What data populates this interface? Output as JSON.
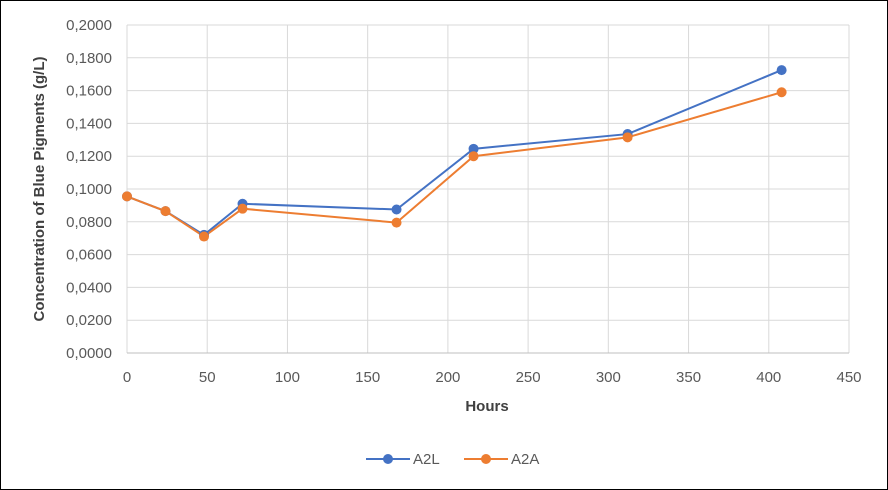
{
  "chart_data": {
    "type": "scatter",
    "title": "",
    "xlabel": "Hours",
    "ylabel": "Concentration of Blue Pigments (g/L)",
    "xlim": [
      0,
      450
    ],
    "ylim": [
      0,
      0.2
    ],
    "x_ticks": [
      0,
      50,
      100,
      150,
      200,
      250,
      300,
      350,
      400,
      450
    ],
    "x_tick_labels": [
      "0",
      "50",
      "100",
      "150",
      "200",
      "250",
      "300",
      "350",
      "400",
      "450"
    ],
    "y_ticks": [
      0,
      0.02,
      0.04,
      0.06,
      0.08,
      0.1,
      0.12,
      0.14,
      0.16,
      0.18,
      0.2
    ],
    "y_tick_labels": [
      "0,0000",
      "0,0200",
      "0,0400",
      "0,0600",
      "0,0800",
      "0,1000",
      "0,1200",
      "0,1400",
      "0,1600",
      "0,1800",
      "0,2000"
    ],
    "grid": true,
    "legend_position": "bottom",
    "x": [
      0,
      24,
      48,
      72,
      168,
      216,
      312,
      408
    ],
    "series": [
      {
        "name": "A2L",
        "color": "#4472C4",
        "values": [
          0.0955,
          0.0865,
          0.072,
          0.091,
          0.0875,
          0.1245,
          0.1335,
          0.1725
        ]
      },
      {
        "name": "A2A",
        "color": "#ED7D31",
        "values": [
          0.0955,
          0.0865,
          0.071,
          0.088,
          0.0795,
          0.12,
          0.1315,
          0.159
        ]
      }
    ]
  }
}
